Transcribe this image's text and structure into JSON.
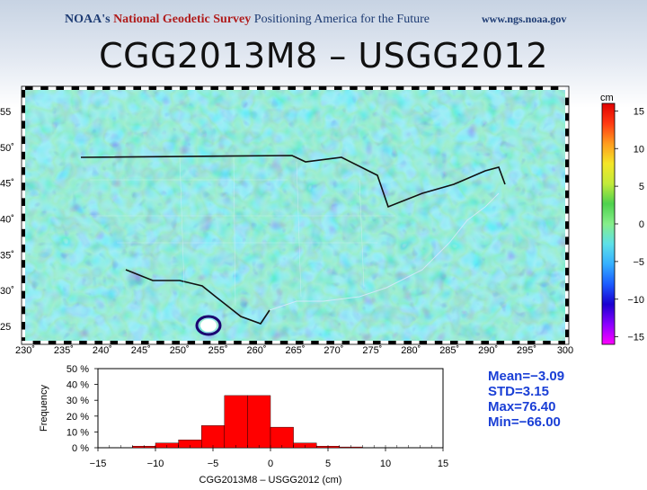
{
  "header": {
    "logo_org": "NOAA's",
    "logo_ngs": "National Geodetic Survey",
    "logo_slogan": "Positioning America for the Future",
    "url": "www.ngs.noaa.gov"
  },
  "title": "CGG2013M8 – USGG2012",
  "map": {
    "lon_range": [
      230,
      300
    ],
    "lat_range": [
      23,
      58
    ],
    "lon_ticks": [
      "230˚",
      "235˚",
      "240˚",
      "245˚",
      "250˚",
      "255˚",
      "260˚",
      "265˚",
      "270˚",
      "275˚",
      "280˚",
      "285˚",
      "290˚",
      "295˚",
      "300"
    ],
    "lat_ticks": [
      "55",
      "50˚",
      "45˚",
      "40˚",
      "35˚",
      "30˚",
      "25"
    ],
    "lat_tick_values": [
      55,
      50,
      45,
      40,
      35,
      30,
      25
    ],
    "colorbar": {
      "unit": "cm",
      "range": [
        -16,
        16
      ],
      "tick_labels": [
        "15",
        "10",
        "5",
        "0",
        "−5",
        "−10",
        "−15"
      ],
      "tick_values": [
        15,
        10,
        5,
        0,
        -5,
        -10,
        -15
      ],
      "colors": [
        "#ff00ff",
        "#8a00ff",
        "#1a00d0",
        "#1b5cff",
        "#35b0ff",
        "#5de0e8",
        "#86ee8a",
        "#4ed24e",
        "#c2ea3a",
        "#f4e628",
        "#ff9c1f",
        "#ff3a12",
        "#e00000"
      ]
    }
  },
  "chart_data": {
    "type": "bar",
    "xlabel": "CGG2013M8 – USGG2012 (cm)",
    "ylabel": "Frequency",
    "xlim": [
      -15,
      15
    ],
    "ylim": [
      0,
      50
    ],
    "x_tick_labels": [
      "−15",
      "−10",
      "−5",
      "0",
      "5",
      "10",
      "15"
    ],
    "x_tick_values": [
      -15,
      -10,
      -5,
      0,
      5,
      10,
      15
    ],
    "y_tick_labels": [
      "0 %",
      "10 %",
      "20 %",
      "30 %",
      "40 %",
      "50 %"
    ],
    "y_tick_values": [
      0,
      10,
      20,
      30,
      40,
      50
    ],
    "bins": [
      {
        "x0": -12,
        "x1": -10,
        "value": 1
      },
      {
        "x0": -10,
        "x1": -8,
        "value": 3
      },
      {
        "x0": -8,
        "x1": -6,
        "value": 5
      },
      {
        "x0": -6,
        "x1": -4,
        "value": 14
      },
      {
        "x0": -4,
        "x1": -2,
        "value": 33
      },
      {
        "x0": -2,
        "x1": 0,
        "value": 33
      },
      {
        "x0": 0,
        "x1": 2,
        "value": 13
      },
      {
        "x0": 2,
        "x1": 4,
        "value": 3
      },
      {
        "x0": 4,
        "x1": 6,
        "value": 1
      },
      {
        "x0": 6,
        "x1": 8,
        "value": 0.5
      }
    ],
    "bar_color": "#ff0000"
  },
  "stats": {
    "mean": "Mean=−3.09",
    "std": "STD=3.15",
    "max": "Max=76.40",
    "min": "Min=−66.00"
  }
}
